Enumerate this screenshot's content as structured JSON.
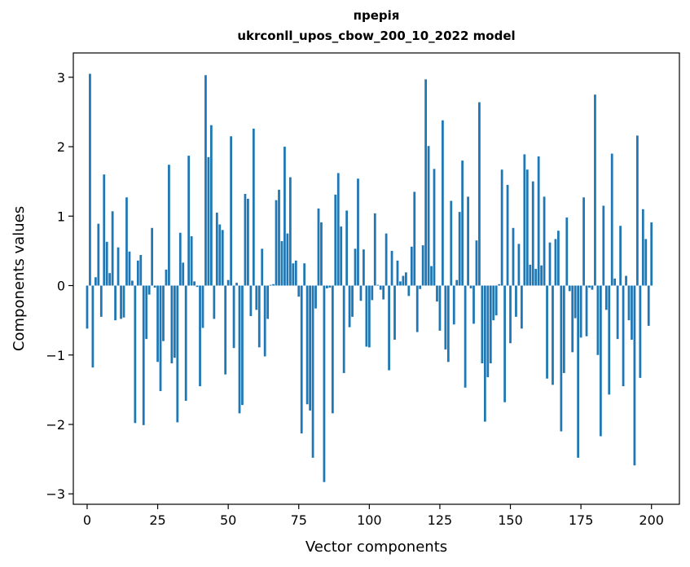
{
  "chart_data": {
    "type": "bar",
    "title_line1": "прерія",
    "title_line2": "ukrconll_upos_cbow_200_10_2022 model",
    "xlabel": "Vector components",
    "ylabel": "Components values",
    "xlim": [
      -4.9,
      209.9
    ],
    "ylim": [
      -3.15,
      3.35
    ],
    "xticks": [
      0,
      25,
      50,
      75,
      100,
      125,
      150,
      175,
      200
    ],
    "yticks": [
      -3,
      -2,
      -1,
      0,
      1,
      2,
      3
    ],
    "ytick_labels": [
      "−3",
      "−2",
      "−1",
      "0",
      "1",
      "2",
      "3"
    ],
    "bar_color": "#1f77b4",
    "grid": false,
    "values": [
      -0.62,
      3.05,
      -1.18,
      0.12,
      0.89,
      -0.45,
      1.6,
      0.63,
      0.18,
      1.07,
      -0.5,
      0.55,
      -0.48,
      -0.46,
      1.27,
      0.49,
      0.07,
      -1.98,
      0.36,
      0.44,
      -2.01,
      -0.77,
      -0.13,
      0.83,
      -0.03,
      -1.1,
      -1.52,
      -0.8,
      0.23,
      1.74,
      -1.12,
      -1.04,
      -1.97,
      0.76,
      0.33,
      -1.66,
      1.87,
      0.71,
      0.06,
      -0.02,
      -1.45,
      -0.61,
      3.03,
      1.85,
      2.31,
      -0.48,
      1.05,
      0.88,
      0.8,
      -1.28,
      0.08,
      2.15,
      -0.9,
      0.04,
      -1.84,
      -1.72,
      1.32,
      1.25,
      -0.44,
      2.26,
      -0.35,
      -0.89,
      0.53,
      -1.02,
      -0.48,
      0.01,
      0.02,
      1.23,
      1.38,
      0.64,
      2.0,
      0.75,
      1.56,
      0.32,
      0.36,
      -0.16,
      -2.13,
      0.32,
      -1.71,
      -1.8,
      -2.48,
      -0.33,
      1.11,
      0.91,
      -2.83,
      -0.04,
      -0.03,
      -1.84,
      1.31,
      1.62,
      0.85,
      -1.26,
      1.08,
      -0.6,
      -0.45,
      0.53,
      1.54,
      -0.22,
      0.52,
      -0.88,
      -0.89,
      -0.21,
      1.04,
      0.01,
      -0.06,
      -0.2,
      0.75,
      -1.22,
      0.5,
      -0.78,
      0.36,
      0.06,
      0.14,
      0.19,
      -0.15,
      0.56,
      1.35,
      -0.67,
      -0.05,
      0.58,
      2.97,
      2.01,
      0.28,
      1.68,
      -0.23,
      -0.65,
      2.38,
      -0.92,
      -1.1,
      1.22,
      -0.56,
      0.08,
      1.06,
      1.8,
      -1.47,
      1.28,
      -0.04,
      -0.55,
      0.65,
      2.64,
      -1.12,
      -1.96,
      -1.32,
      -1.12,
      -0.5,
      -0.43,
      0.02,
      1.67,
      -1.68,
      1.45,
      -0.83,
      0.83,
      -0.45,
      0.6,
      -0.62,
      1.89,
      1.67,
      0.3,
      1.5,
      0.24,
      1.86,
      0.29,
      1.28,
      -1.34,
      0.62,
      -1.43,
      0.67,
      0.79,
      -2.1,
      -1.26,
      0.98,
      -0.08,
      -0.96,
      -0.47,
      -2.48,
      -0.75,
      1.27,
      -0.73,
      -0.03,
      -0.06,
      2.75,
      -1.0,
      -2.17,
      1.15,
      -0.35,
      -1.57,
      1.9,
      0.1,
      -0.77,
      0.86,
      -1.45,
      0.14,
      -0.5,
      -0.78,
      -2.59,
      2.16,
      -1.33,
      1.1,
      0.67,
      -0.58,
      0.91
    ]
  }
}
